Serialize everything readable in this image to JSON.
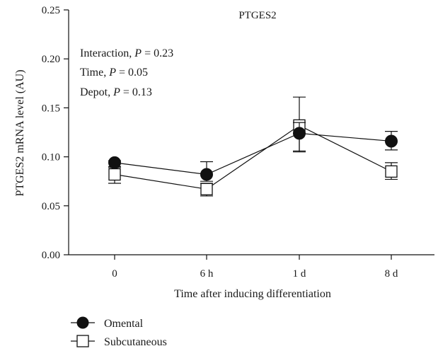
{
  "chart_data": {
    "type": "line",
    "title": "PTGES2",
    "xlabel": "Time after inducing differentiation",
    "ylabel": "PTGES2 mRNA level (AU)",
    "categories": [
      "0",
      "6 h",
      "1 d",
      "8 d"
    ],
    "ylim": [
      0,
      0.25
    ],
    "yticks": [
      "0.00",
      "0.05",
      "0.10",
      "0.15",
      "0.20",
      "0.25"
    ],
    "grid": false,
    "legend_position": "bottom-left",
    "annotations": [
      {
        "label": "Interaction, ",
        "italic": "P",
        "rest": " = 0.23"
      },
      {
        "label": "Time, ",
        "italic": "P",
        "rest": " = 0.05"
      },
      {
        "label": "Depot, ",
        "italic": "P",
        "rest": " = 0.13"
      }
    ],
    "series": [
      {
        "name": "Omental",
        "marker": "filled-circle",
        "color": "#111111",
        "values": [
          0.094,
          0.082,
          0.124,
          0.116
        ],
        "err_low": [
          0.089,
          0.075,
          0.106,
          0.107
        ],
        "err_high": [
          0.096,
          0.095,
          0.135,
          0.126
        ]
      },
      {
        "name": "Subcutaneous",
        "marker": "open-square",
        "color": "#111111",
        "values": [
          0.082,
          0.067,
          0.132,
          0.085
        ],
        "err_low": [
          0.073,
          0.06,
          0.105,
          0.077
        ],
        "err_high": [
          0.09,
          0.073,
          0.161,
          0.094
        ]
      }
    ]
  }
}
